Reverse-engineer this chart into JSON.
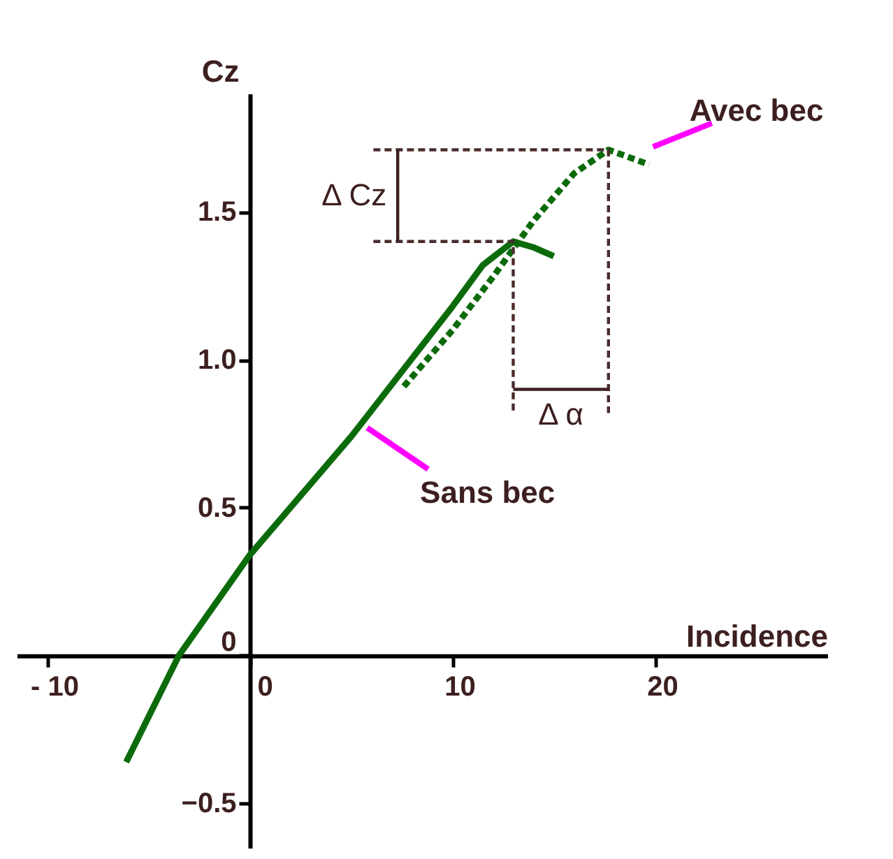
{
  "chart_data": {
    "type": "line",
    "xlabel": "Incidence",
    "ylabel": "Cz",
    "xlim": [
      -11.5,
      28.5
    ],
    "ylim": [
      -0.65,
      1.9
    ],
    "xticks": [
      {
        "value": -10,
        "label": "- 10"
      },
      0,
      10,
      20
    ],
    "yticks": [
      -0.5,
      {
        "value": 0,
        "label": "0"
      },
      0.5,
      {
        "value": 1,
        "label": "1.0"
      },
      1.5
    ],
    "grid": false,
    "series": [
      {
        "name": "Sans bec",
        "color": "#0b6b0b",
        "line_style": "solid",
        "x": [
          -6.1,
          -3.5,
          0,
          5,
          10,
          11.5,
          13,
          14,
          15
        ],
        "values": [
          -0.36,
          0,
          0.34,
          0.74,
          1.18,
          1.32,
          1.4,
          1.38,
          1.35
        ]
      },
      {
        "name": "Avec bec",
        "color": "#0b6b0b",
        "line_style": "dashed",
        "x": [
          7.6,
          10,
          12,
          14,
          16,
          17.7,
          19.7
        ],
        "values": [
          0.91,
          1.1,
          1.28,
          1.47,
          1.63,
          1.71,
          1.66
        ]
      },
      {
        "color": "#4a2c2c",
        "line_style": "dashed",
        "x": [
          6.1,
          17.7,
          17.7
        ],
        "values": [
          1.71,
          1.71,
          0.82
        ]
      },
      {
        "color": "#4a2c2c",
        "line_style": "dashed",
        "x": [
          6.1,
          13,
          13
        ],
        "values": [
          1.4,
          1.4,
          0.82
        ]
      },
      {
        "color": "#3d1f1f",
        "line_style": "solid",
        "x": [
          7.3,
          7.3
        ],
        "values": [
          1.4,
          1.71
        ]
      },
      {
        "color": "#3d1f1f",
        "line_style": "solid",
        "x": [
          13,
          17.7
        ],
        "values": [
          0.9,
          0.9
        ]
      }
    ],
    "annotations": [
      "Δ Cz",
      "Δ α"
    ]
  }
}
